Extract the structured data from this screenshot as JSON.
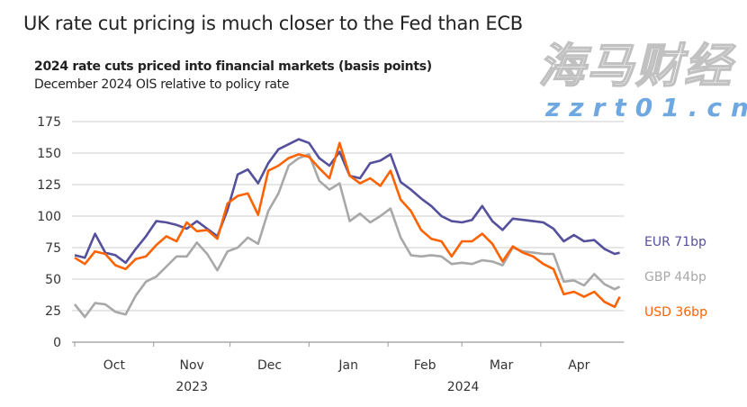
{
  "headline": "UK rate cut pricing is much closer to the Fed than ECB",
  "watermark": {
    "text": "海马财经",
    "url_text": "zzrt01.cn"
  },
  "chart_data": {
    "type": "line",
    "title": "2024 rate cuts priced into financial markets (basis points)",
    "subtitle": "December 2024 OIS relative to policy rate",
    "xlabel": "",
    "ylabel": "",
    "ylim": [
      0,
      175
    ],
    "yticks": [
      "0",
      "25",
      "50",
      "75",
      "100",
      "125",
      "150",
      "175"
    ],
    "ytick_values": [
      0,
      25,
      50,
      75,
      100,
      125,
      150,
      175
    ],
    "xlim": [
      "2023-09-30",
      "2024-05-03"
    ],
    "month_labels": [
      "Oct",
      "Nov",
      "Dec",
      "Jan",
      "Feb",
      "Mar",
      "Apr"
    ],
    "month_starts": [
      "2023-10-01",
      "2023-11-01",
      "2023-12-01",
      "2024-01-01",
      "2024-02-01",
      "2024-03-01",
      "2024-04-01"
    ],
    "year_labels": [
      "2023",
      "2024"
    ],
    "grid": "horizontal",
    "legend": "right (end-of-line labels)",
    "x": [
      "2023-10-01",
      "2023-10-05",
      "2023-10-09",
      "2023-10-13",
      "2023-10-17",
      "2023-10-21",
      "2023-10-25",
      "2023-10-29",
      "2023-11-02",
      "2023-11-06",
      "2023-11-10",
      "2023-11-14",
      "2023-11-18",
      "2023-11-22",
      "2023-11-26",
      "2023-11-30",
      "2023-12-04",
      "2023-12-08",
      "2023-12-12",
      "2023-12-16",
      "2023-12-20",
      "2023-12-24",
      "2023-12-28",
      "2024-01-01",
      "2024-01-05",
      "2024-01-09",
      "2024-01-13",
      "2024-01-17",
      "2024-01-21",
      "2024-01-25",
      "2024-01-29",
      "2024-02-02",
      "2024-02-06",
      "2024-02-10",
      "2024-02-14",
      "2024-02-18",
      "2024-02-22",
      "2024-02-26",
      "2024-03-01",
      "2024-03-05",
      "2024-03-09",
      "2024-03-13",
      "2024-03-17",
      "2024-03-21",
      "2024-03-25",
      "2024-03-29",
      "2024-04-02",
      "2024-04-06",
      "2024-04-10",
      "2024-04-14",
      "2024-04-18",
      "2024-04-22",
      "2024-04-26",
      "2024-04-30",
      "2024-05-02"
    ],
    "series": [
      {
        "name": "EUR",
        "label": "EUR 71bp",
        "color": "#55509c",
        "values": [
          69,
          67,
          86,
          71,
          69,
          63,
          74,
          84,
          96,
          95,
          93,
          90,
          96,
          90,
          84,
          105,
          133,
          137,
          126,
          142,
          153,
          157,
          161,
          158,
          146,
          140,
          151,
          132,
          130,
          142,
          144,
          149,
          127,
          121,
          114,
          108,
          100,
          96,
          95,
          97,
          108,
          96,
          89,
          98,
          97,
          96,
          95,
          90,
          80,
          85,
          80,
          81,
          74,
          70,
          71
        ]
      },
      {
        "name": "GBP",
        "label": "GBP 44bp",
        "color": "#a8a8a8",
        "values": [
          30,
          20,
          31,
          30,
          24,
          22,
          37,
          48,
          52,
          60,
          68,
          68,
          79,
          70,
          57,
          72,
          75,
          83,
          78,
          104,
          118,
          140,
          146,
          149,
          128,
          121,
          126,
          96,
          102,
          95,
          100,
          106,
          83,
          69,
          68,
          69,
          68,
          62,
          63,
          62,
          65,
          64,
          61,
          75,
          72,
          71,
          70,
          70,
          48,
          49,
          45,
          54,
          46,
          42,
          44
        ]
      },
      {
        "name": "USD",
        "label": "USD 36bp",
        "color": "#ff6200",
        "values": [
          67,
          62,
          72,
          70,
          61,
          58,
          66,
          68,
          77,
          84,
          80,
          95,
          88,
          89,
          82,
          110,
          116,
          118,
          101,
          136,
          140,
          146,
          149,
          147,
          138,
          130,
          158,
          132,
          126,
          130,
          124,
          136,
          113,
          104,
          89,
          82,
          80,
          68,
          80,
          80,
          86,
          78,
          64,
          76,
          71,
          68,
          62,
          58,
          38,
          40,
          36,
          40,
          32,
          28,
          36
        ]
      }
    ]
  }
}
